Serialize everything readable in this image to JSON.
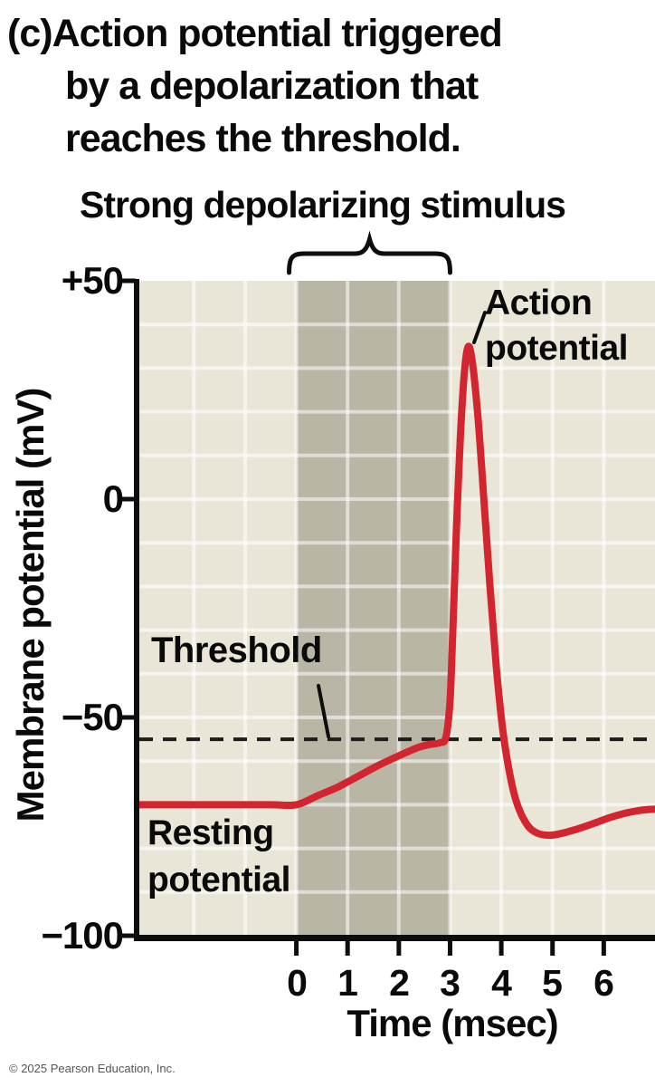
{
  "figure": {
    "panel_label": "(c)",
    "title_lines": [
      "Action potential triggered",
      "by a depolarization that",
      "reaches the threshold."
    ],
    "stimulus_heading": "Strong depolarizing stimulus",
    "copyright": "© 2025 Pearson Education, Inc."
  },
  "axes": {
    "y_label": "Membrane potential (mV)",
    "x_label": "Time (msec)",
    "y_ticks": [
      "+50",
      "0",
      "−50",
      "−100"
    ],
    "x_ticks": [
      "0",
      "1",
      "2",
      "3",
      "4",
      "5",
      "6"
    ]
  },
  "annotations": {
    "action_potential": "Action potential",
    "threshold": "Threshold",
    "resting_potential": "Resting potential"
  },
  "chart_data": {
    "type": "line",
    "title": "(c) Action potential triggered by a depolarization that reaches the threshold.",
    "xlabel": "Time (msec)",
    "ylabel": "Membrane potential (mV)",
    "xlim": [
      -3.1,
      7.0
    ],
    "ylim": [
      -100,
      50
    ],
    "x_tick_values": [
      0,
      1,
      2,
      3,
      4,
      5,
      6
    ],
    "y_tick_values": [
      50,
      0,
      -50,
      -100
    ],
    "grid": {
      "x_interval_msec": 1,
      "y_interval_mV": 10,
      "visible": true
    },
    "threshold_mV": -55,
    "resting_potential_mV": -70,
    "peak_mV": 35,
    "afterhyperpolarization_mV": -77,
    "stimulus_region_msec": [
      0,
      3
    ],
    "legend": "none",
    "colors": {
      "line": "#d32530",
      "plot_bg": "#e9e6d7",
      "stimulus_band": "#b9b6a5",
      "gridline": "rgba(255,255,255,0.55)",
      "axis": "#0d0d0d",
      "threshold_dash": "#1c1c1c"
    },
    "series": [
      {
        "name": "Membrane potential",
        "points": [
          [
            -3.1,
            -70
          ],
          [
            -2.5,
            -70
          ],
          [
            -1.5,
            -70
          ],
          [
            -0.5,
            -70
          ],
          [
            0,
            -70
          ],
          [
            0.4,
            -68
          ],
          [
            0.8,
            -66
          ],
          [
            1.2,
            -63.5
          ],
          [
            1.6,
            -61
          ],
          [
            2.0,
            -58.8
          ],
          [
            2.35,
            -57
          ],
          [
            2.6,
            -56.2
          ],
          [
            2.8,
            -55.8
          ],
          [
            2.92,
            -54.5
          ],
          [
            3.0,
            -46
          ],
          [
            3.06,
            -28
          ],
          [
            3.12,
            -8
          ],
          [
            3.2,
            14
          ],
          [
            3.28,
            29
          ],
          [
            3.36,
            35
          ],
          [
            3.45,
            30
          ],
          [
            3.55,
            18
          ],
          [
            3.66,
            0
          ],
          [
            3.78,
            -20
          ],
          [
            3.9,
            -38
          ],
          [
            4.02,
            -52
          ],
          [
            4.15,
            -62
          ],
          [
            4.3,
            -69.5
          ],
          [
            4.5,
            -74.5
          ],
          [
            4.7,
            -76.5
          ],
          [
            4.95,
            -77
          ],
          [
            5.2,
            -76.5
          ],
          [
            5.5,
            -75.5
          ],
          [
            5.8,
            -74.3
          ],
          [
            6.1,
            -73
          ],
          [
            6.4,
            -72
          ],
          [
            6.7,
            -71.3
          ],
          [
            7.0,
            -71
          ]
        ]
      }
    ]
  }
}
